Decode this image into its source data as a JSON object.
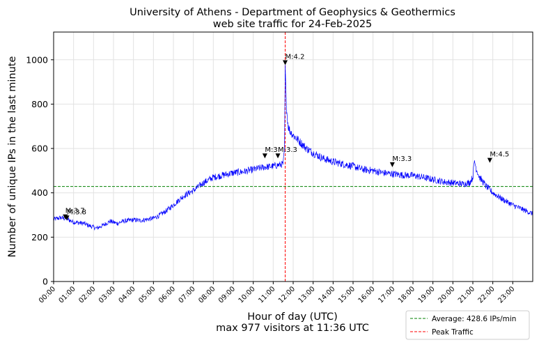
{
  "chart_data": {
    "type": "line",
    "title_line1": "University of Athens - Department of Geophysics & Geothermics",
    "title_line2": "web site traffic for 24-Feb-2025",
    "xlabel": "Hour of day (UTC)",
    "xlabel_sub": "max 977 visitors at 11:36 UTC",
    "ylabel": "Number of unique IPs in the last minute",
    "xlim": [
      0,
      1440
    ],
    "ylim": [
      0,
      1125
    ],
    "yticks": [
      0,
      200,
      400,
      600,
      800,
      1000
    ],
    "xticks": [
      "00:00",
      "01:00",
      "02:00",
      "03:00",
      "04:00",
      "05:00",
      "06:00",
      "07:00",
      "08:00",
      "09:00",
      "10:00",
      "11:00",
      "12:00",
      "13:00",
      "14:00",
      "15:00",
      "16:00",
      "17:00",
      "18:00",
      "19:00",
      "20:00",
      "21:00",
      "22:00",
      "23:00"
    ],
    "grid": true,
    "average": 428.6,
    "peak_minute": 696,
    "colors": {
      "traffic": "#0000ff",
      "average": "#008000",
      "peak": "#ff0000"
    },
    "legend_position": "bottom-right, below plot",
    "legend": [
      {
        "label": "Average: 428.6 IPs/min",
        "style": "green-dashed"
      },
      {
        "label": "Peak Traffic",
        "style": "red-dashed"
      }
    ],
    "series": [
      {
        "x_unit": "minutes after 00:00 UTC",
        "points": [
          [
            0,
            280
          ],
          [
            20,
            288
          ],
          [
            40,
            282
          ],
          [
            60,
            268
          ],
          [
            90,
            262
          ],
          [
            110,
            250
          ],
          [
            130,
            240
          ],
          [
            150,
            255
          ],
          [
            170,
            272
          ],
          [
            190,
            262
          ],
          [
            210,
            272
          ],
          [
            240,
            278
          ],
          [
            260,
            275
          ],
          [
            300,
            285
          ],
          [
            320,
            300
          ],
          [
            340,
            320
          ],
          [
            360,
            345
          ],
          [
            390,
            385
          ],
          [
            420,
            410
          ],
          [
            450,
            445
          ],
          [
            480,
            470
          ],
          [
            510,
            480
          ],
          [
            540,
            490
          ],
          [
            570,
            495
          ],
          [
            600,
            505
          ],
          [
            630,
            515
          ],
          [
            660,
            520
          ],
          [
            690,
            530
          ],
          [
            694,
            600
          ],
          [
            696,
            977
          ],
          [
            700,
            780
          ],
          [
            705,
            700
          ],
          [
            710,
            680
          ],
          [
            720,
            660
          ],
          [
            740,
            630
          ],
          [
            760,
            600
          ],
          [
            780,
            580
          ],
          [
            810,
            555
          ],
          [
            840,
            540
          ],
          [
            870,
            530
          ],
          [
            900,
            520
          ],
          [
            930,
            505
          ],
          [
            960,
            500
          ],
          [
            990,
            490
          ],
          [
            1020,
            485
          ],
          [
            1050,
            480
          ],
          [
            1080,
            478
          ],
          [
            1110,
            470
          ],
          [
            1140,
            460
          ],
          [
            1170,
            450
          ],
          [
            1200,
            445
          ],
          [
            1230,
            440
          ],
          [
            1250,
            445
          ],
          [
            1260,
            470
          ],
          [
            1265,
            545
          ],
          [
            1270,
            510
          ],
          [
            1280,
            470
          ],
          [
            1300,
            430
          ],
          [
            1320,
            400
          ],
          [
            1350,
            370
          ],
          [
            1380,
            345
          ],
          [
            1410,
            325
          ],
          [
            1440,
            305
          ]
        ]
      }
    ],
    "markers": [
      {
        "label": "M:3.7",
        "x": 35,
        "y": 290
      },
      {
        "label": "M:3.8",
        "x": 40,
        "y": 285
      },
      {
        "label": "M:3",
        "x": 635,
        "y": 565
      },
      {
        "label": "M:3.3",
        "x": 674,
        "y": 565
      },
      {
        "label": "M:4.2",
        "x": 696,
        "y": 985
      },
      {
        "label": "M:3.3",
        "x": 1018,
        "y": 525
      },
      {
        "label": "M:4.5",
        "x": 1311,
        "y": 545
      }
    ]
  }
}
